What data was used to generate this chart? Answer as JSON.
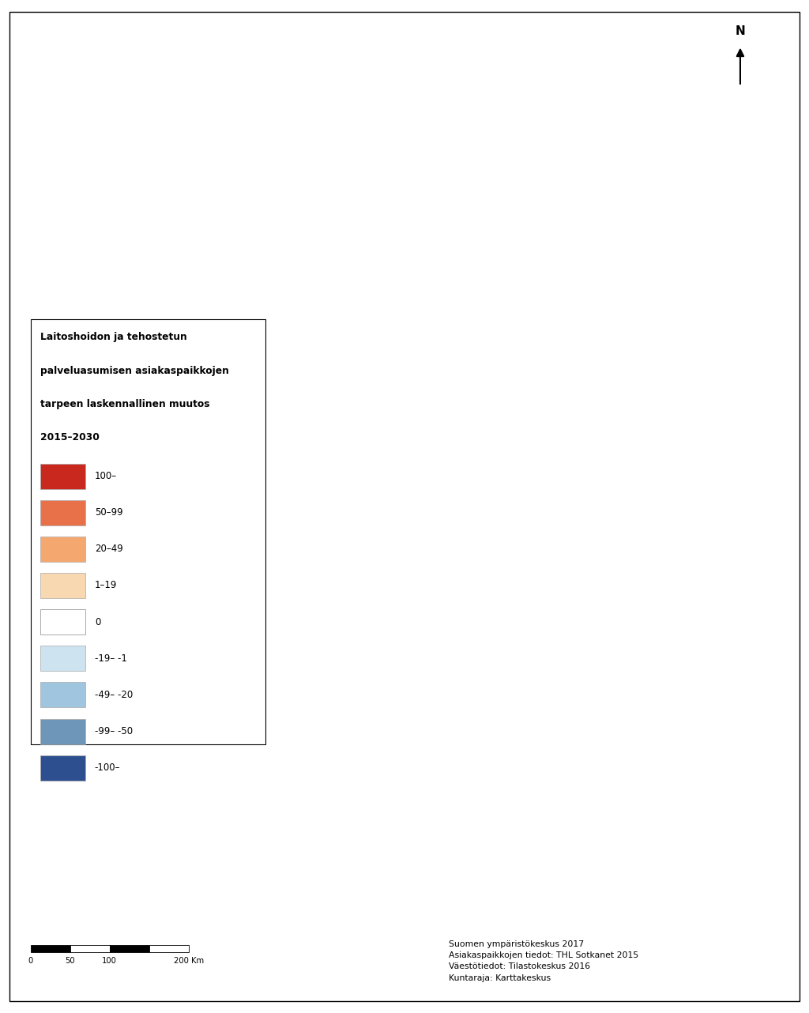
{
  "legend_title_lines": [
    "Laitoshoidon ja tehostetun",
    "palveluasumisen asiakaspaikkojen",
    "tarpeen laskennallinen muutos",
    "2015–2030"
  ],
  "legend_labels": [
    "100–",
    "50–99",
    "20–49",
    "1–19",
    "0",
    "-19– -1",
    "-49– -20",
    "-99– -50",
    "-100–"
  ],
  "legend_colors": [
    "#c8281e",
    "#e8714a",
    "#f4a870",
    "#f8d8b0",
    "#ffffff",
    "#cde3ef",
    "#9fc5df",
    "#6e96b8",
    "#2e4f8f"
  ],
  "border_color": "#777777",
  "background_color": "#ffffff",
  "source_text": "Suomen ympäristökeskus 2017\nAsiakaspaikkojen tiedot: THL Sotkanet 2015\nVäestötiedot: Tilastokeskus 2016\nKuntaraja: Karttakeskus",
  "figsize": [
    10.24,
    12.82
  ],
  "dpi": 100,
  "map_color_weights": [
    0.06,
    0.08,
    0.12,
    0.15,
    0.04,
    0.25,
    0.15,
    0.08,
    0.07
  ]
}
